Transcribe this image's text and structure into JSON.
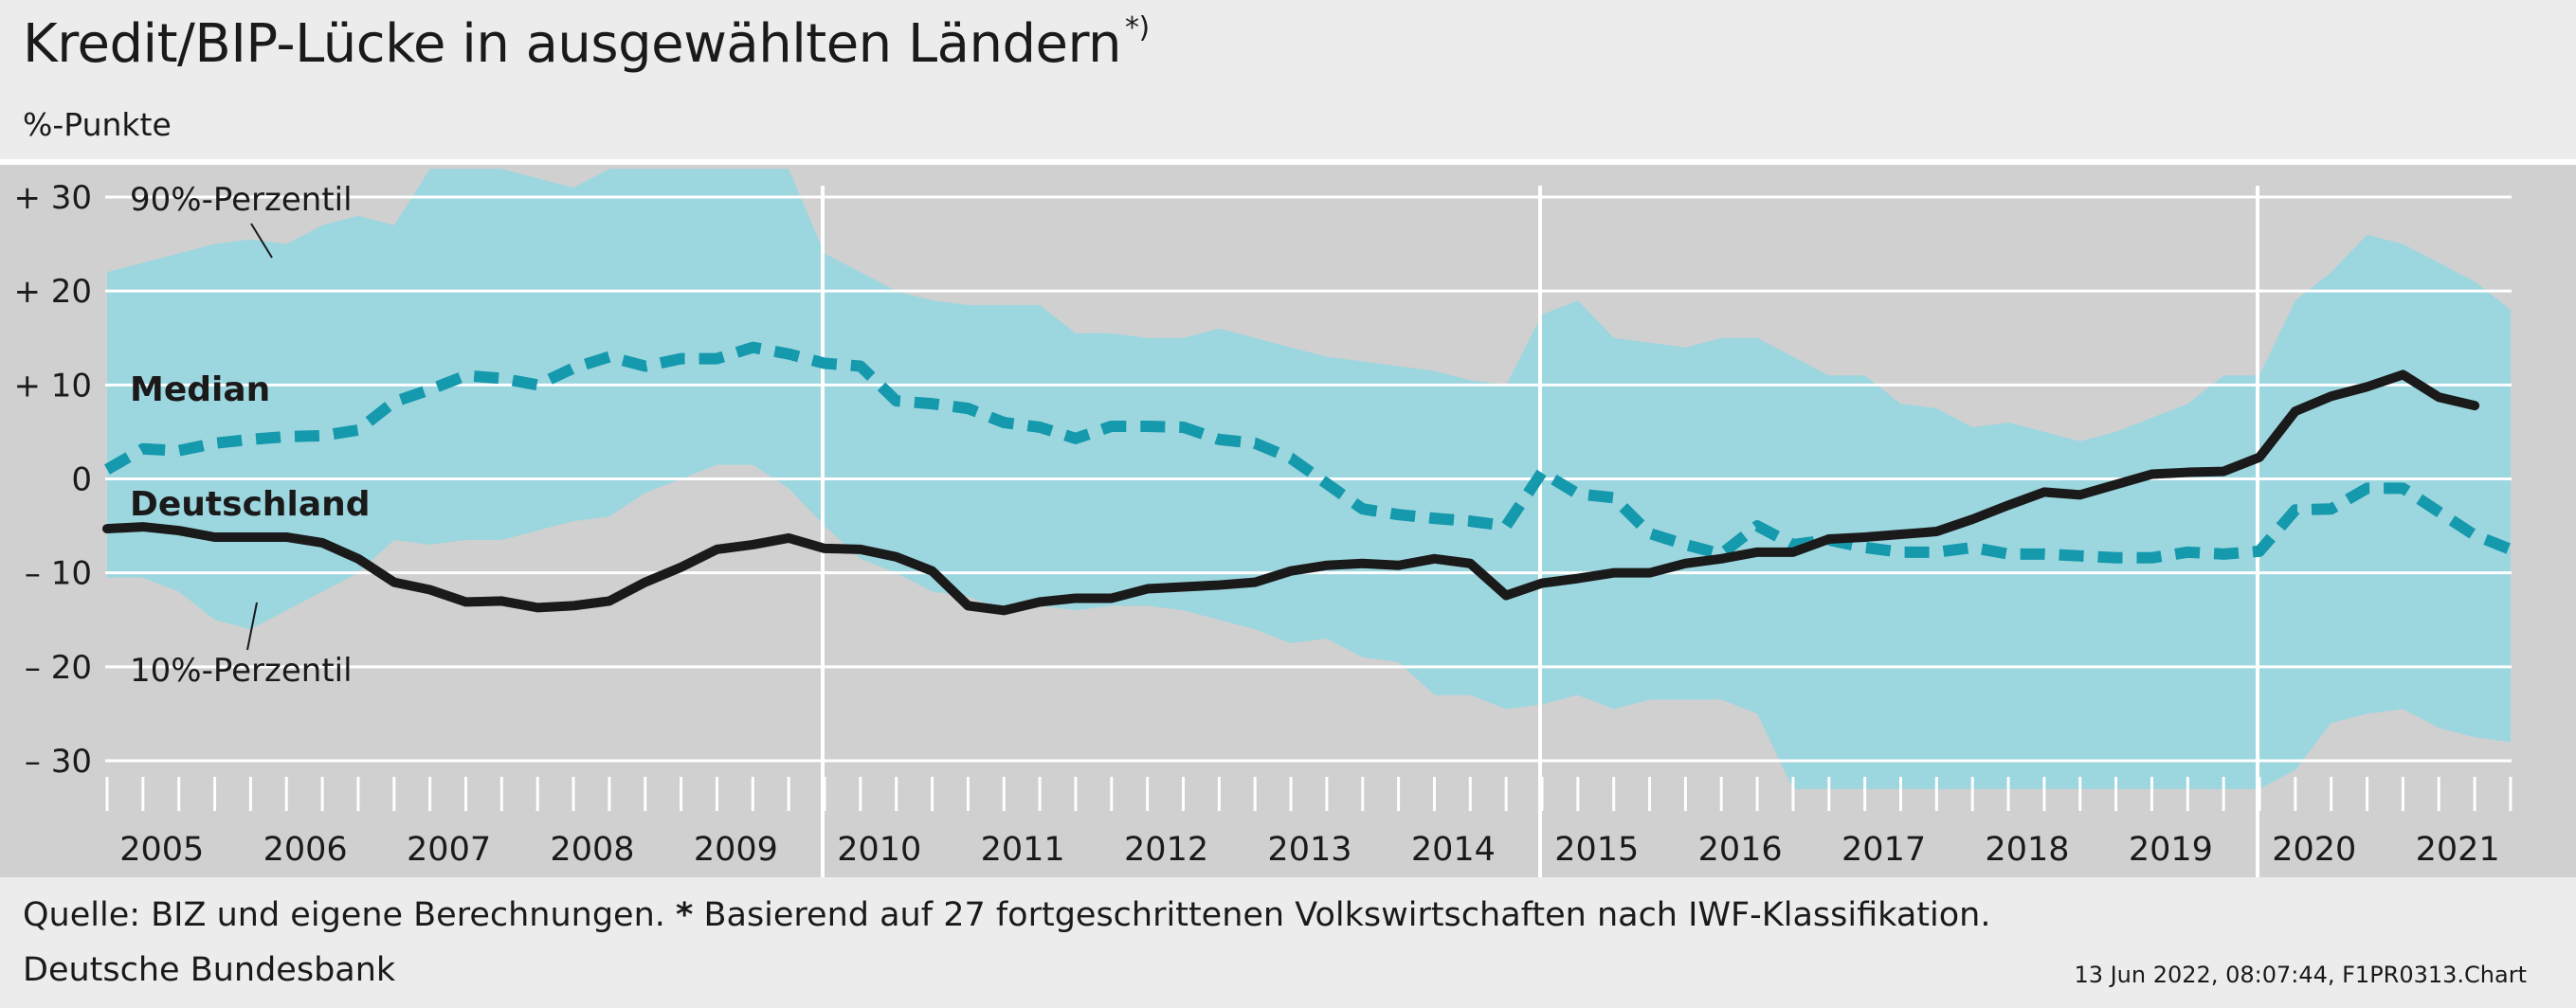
{
  "title": "Kredit/BIP-Lücke in ausgewählten Ländern",
  "title_footnote_marker": "*)",
  "unit_label": "%-Punkte",
  "source_text": "Quelle: BIZ und eigene Berechnungen.",
  "footnote_marker": "*",
  "footnote_text": "Basierend auf 27 fortgeschrittenen Volkswirtschaften nach IWF-Klassifikation.",
  "publisher": "Deutsche Bundesbank",
  "timestamp": "13 Jun 2022, 08:07:44, F1PR0313.Chart",
  "colors": {
    "background": "#ececec",
    "plot_background": "#d0d0d0",
    "band": "#9cd6df",
    "median": "#1599ad",
    "germany": "#1a1a1a",
    "grid": "#ffffff"
  },
  "chart_data": {
    "type": "area",
    "x_unit": "quarter",
    "ylim": [
      -30,
      30
    ],
    "y_ticks": [
      30,
      20,
      10,
      0,
      -10,
      -20,
      -30
    ],
    "y_tick_labels": [
      "+ 30",
      "+ 20",
      "+ 10",
      "0",
      "– 10",
      "– 20",
      "– 30"
    ],
    "x_categories": [
      "2005",
      "2006",
      "2007",
      "2008",
      "2009",
      "2010",
      "2011",
      "2012",
      "2013",
      "2014",
      "2015",
      "2016",
      "2017",
      "2018",
      "2019",
      "2020",
      "2021"
    ],
    "x_range": [
      "2005Q1",
      "2021Q4"
    ],
    "vertical_grid_years": [
      2010,
      2015,
      2020
    ],
    "grid": true,
    "series": [
      {
        "name": "90%-Perzentil",
        "kind": "band_upper",
        "start": "2005Q1",
        "values": [
          22,
          23,
          24,
          25,
          25.5,
          25,
          27,
          28,
          27,
          33,
          33,
          33,
          32,
          31,
          33,
          33,
          33,
          33,
          33,
          33,
          24,
          22,
          20,
          19,
          18.5,
          18.5,
          18.5,
          15.5,
          15.5,
          15,
          15,
          16,
          15,
          14,
          13,
          12.5,
          12,
          11.5,
          10.5,
          10,
          17.5,
          19,
          15,
          14.5,
          14,
          15,
          15,
          13,
          11,
          11,
          8,
          7.5,
          5.5,
          6,
          5,
          4,
          5,
          6.5,
          8,
          11,
          11,
          19,
          22,
          26,
          25,
          23,
          21,
          18
        ]
      },
      {
        "name": "10%-Perzentil",
        "kind": "band_lower",
        "start": "2005Q1",
        "values": [
          -10.5,
          -10.5,
          -12,
          -15,
          -16,
          -14,
          -12,
          -10,
          -6.5,
          -7,
          -6.5,
          -6.5,
          -5.5,
          -4.5,
          -4,
          -1.5,
          0,
          1.5,
          1.5,
          -1,
          -5,
          -8.5,
          -10,
          -12,
          -12.5,
          -14,
          -13.5,
          -14,
          -13.5,
          -13.5,
          -14,
          -15,
          -16,
          -17.5,
          -17,
          -19,
          -19.5,
          -23,
          -23,
          -24.5,
          -24,
          -23,
          -24.5,
          -23.5,
          -23.5,
          -23.5,
          -25,
          -33,
          -33,
          -33,
          -33,
          -33,
          -33,
          -33,
          -33,
          -33,
          -33,
          -33,
          -33,
          -33,
          -33,
          -31,
          -26,
          -25,
          -24.5,
          -26.5,
          -27.5,
          -28
        ]
      },
      {
        "name": "Median",
        "kind": "dashed_line",
        "start": "2005Q1",
        "values": [
          1,
          3.2,
          3,
          3.8,
          4.2,
          4.5,
          4.6,
          5.2,
          8.2,
          9.5,
          11,
          10.7,
          10,
          11.8,
          13,
          12,
          12.8,
          12.8,
          14,
          13.3,
          12.3,
          12,
          8.3,
          8,
          7.5,
          6,
          5.5,
          4.3,
          5.6,
          5.6,
          5.5,
          4.2,
          3.8,
          2.2,
          -0.5,
          -3.2,
          -3.8,
          -4.2,
          -4.5,
          -5,
          0.7,
          -1.6,
          -2,
          -5.8,
          -7,
          -8,
          -5,
          -7,
          -6.5,
          -7.3,
          -7.8,
          -7.8,
          -7.3,
          -8,
          -8,
          -8.2,
          -8.4,
          -8.4,
          -7.8,
          -8,
          -7.7,
          -3.3,
          -3.2,
          -1,
          -1,
          -3.5,
          -6,
          -7.5
        ]
      },
      {
        "name": "Deutschland",
        "kind": "line",
        "start": "2005Q1",
        "values": [
          -5.3,
          -5.1,
          -5.5,
          -6.2,
          -6.2,
          -6.2,
          -6.8,
          -8.5,
          -11,
          -11.8,
          -13.1,
          -13,
          -13.7,
          -13.5,
          -13,
          -11,
          -9.4,
          -7.5,
          -7,
          -6.3,
          -7.4,
          -7.5,
          -8.3,
          -9.8,
          -13.5,
          -14,
          -13.1,
          -12.7,
          -12.7,
          -11.7,
          -11.5,
          -11.3,
          -11,
          -9.8,
          -9.2,
          -9,
          -9.2,
          -8.5,
          -9,
          -12.4,
          -11.1,
          -10.6,
          -10,
          -10,
          -9,
          -8.5,
          -7.8,
          -7.8,
          -6.4,
          -6.2,
          -5.9,
          -5.6,
          -4.3,
          -2.8,
          -1.4,
          -1.7,
          -0.6,
          0.5,
          0.7,
          0.8,
          2.3,
          7.2,
          8.8,
          9.8,
          11.1,
          8.7,
          7.8
        ]
      }
    ],
    "annotations": [
      {
        "text": "90%-Perzentil",
        "target": "90%-Perzentil"
      },
      {
        "text": "Median",
        "target": "Median"
      },
      {
        "text": "Deutschland",
        "target": "Deutschland"
      },
      {
        "text": "10%-Perzentil",
        "target": "10%-Perzentil"
      }
    ]
  }
}
